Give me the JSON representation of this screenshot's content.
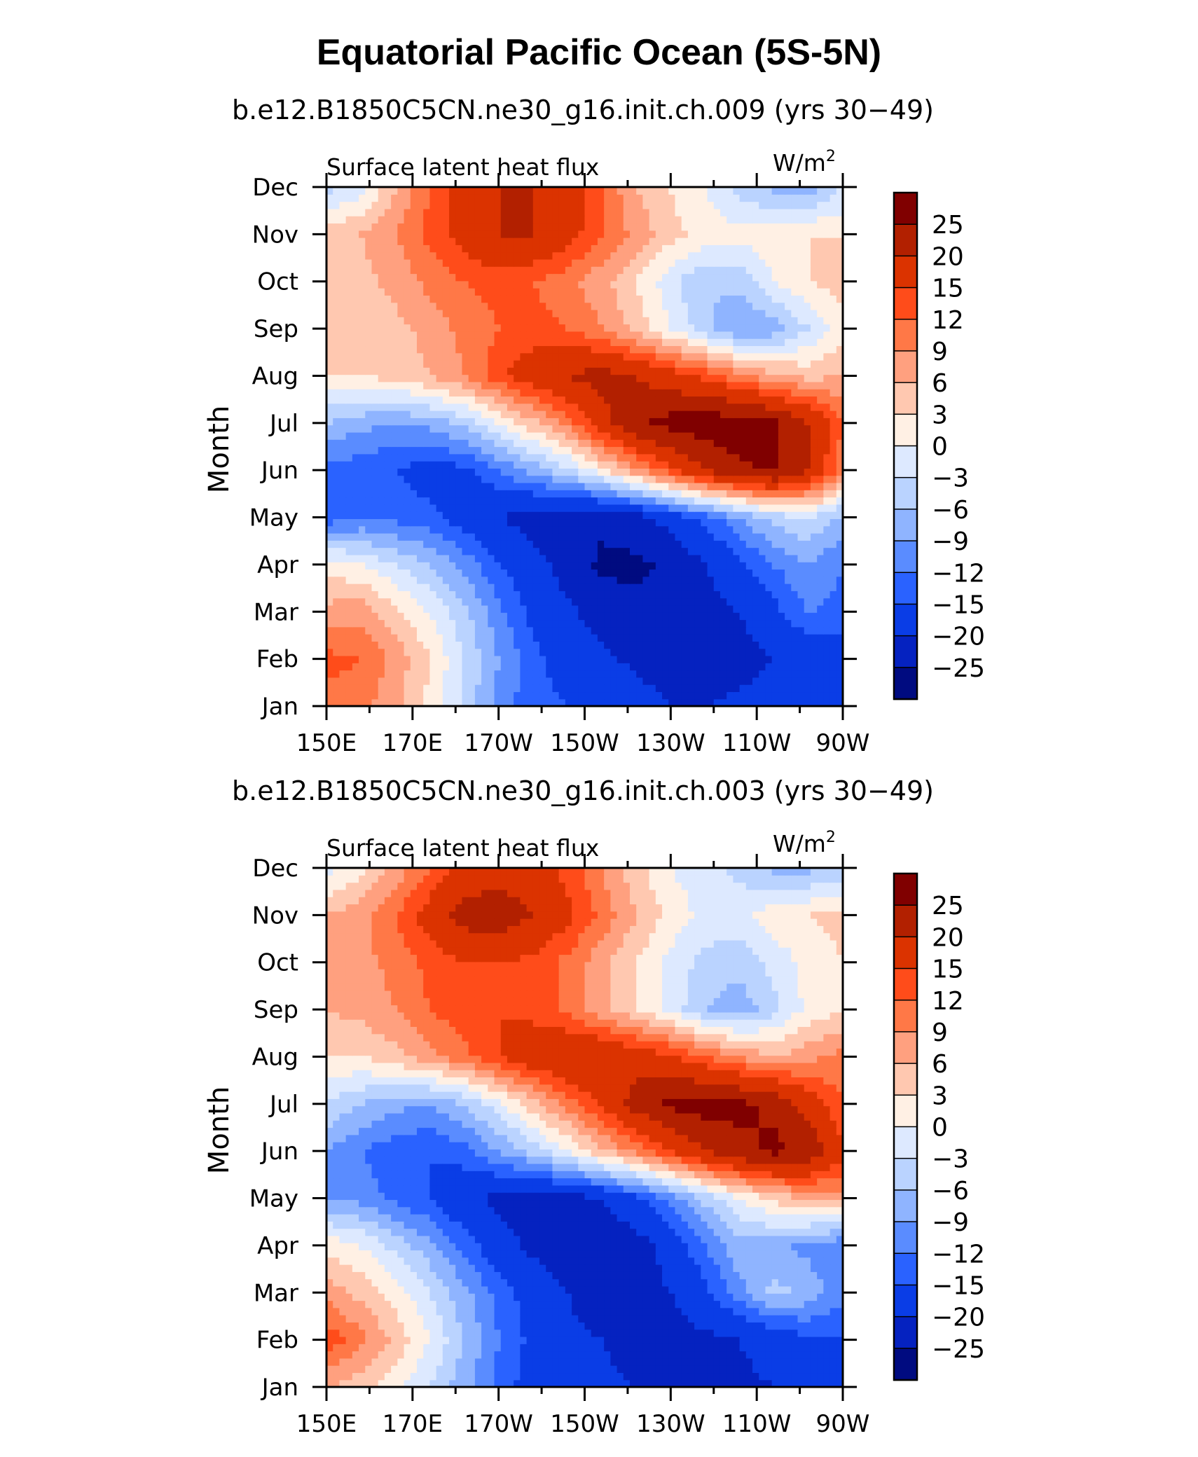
{
  "figure": {
    "title": "Equatorial Pacific Ocean (5S-5N)"
  },
  "chart_data": [
    {
      "type": "heatmap",
      "subtitle": "b.e12.B1850C5CN.ne30_g16.init.ch.009 (yrs 30−49)",
      "variable": "Surface latent heat flux",
      "units_main": "W/m",
      "units_sup": "2",
      "ylabel": "Month",
      "x_ticks": [
        "150E",
        "170E",
        "170W",
        "150W",
        "130W",
        "110W",
        "90W"
      ],
      "y_ticks": [
        "Jan",
        "Feb",
        "Mar",
        "Apr",
        "May",
        "Jun",
        "Jul",
        "Aug",
        "Sep",
        "Oct",
        "Nov",
        "Dec"
      ],
      "x_range": [
        150,
        270
      ],
      "color_levels": [
        "25",
        "20",
        "15",
        "12",
        "9",
        "6",
        "3",
        "0",
        "−3",
        "−6",
        "−9",
        "−12",
        "−15",
        "−20",
        "−25"
      ],
      "colors": [
        "#800000",
        "#b22000",
        "#db3300",
        "#ff4c1a",
        "#ff7847",
        "#ffa07f",
        "#ffc8b0",
        "#fff0e4",
        "#dde9ff",
        "#bad3ff",
        "#8fb4ff",
        "#5a8cff",
        "#2a62ff",
        "#0a3de6",
        "#0522c0",
        "#000b80"
      ],
      "values": [
        [
          11,
          10,
          7,
          2,
          -4,
          -10,
          -14,
          -15,
          -16,
          -18,
          -20,
          -20,
          -19,
          -17,
          -16,
          -16
        ],
        [
          13,
          12,
          8,
          3,
          -3,
          -9,
          -14,
          -17,
          -19,
          -21,
          -22,
          -22,
          -22,
          -20,
          -18,
          -17
        ],
        [
          7,
          8,
          4,
          0,
          -5,
          -11,
          -16,
          -19,
          -22,
          -24,
          -24,
          -22,
          -20,
          -16,
          -12,
          -13
        ],
        [
          2,
          0,
          -3,
          -6,
          -10,
          -15,
          -18,
          -22,
          -26,
          -26,
          -24,
          -20,
          -16,
          -12,
          -9,
          -12
        ],
        [
          -14,
          -12,
          -13,
          -14,
          -17,
          -20,
          -22,
          -24,
          -24,
          -22,
          -18,
          -14,
          -9,
          -5,
          -3,
          -7
        ],
        [
          -13,
          -14,
          -15,
          -17,
          -16,
          -12,
          -8,
          -4,
          2,
          8,
          14,
          20,
          24,
          26,
          20,
          10
        ],
        [
          -6,
          -8,
          -9,
          -8,
          -5,
          0,
          5,
          10,
          18,
          24,
          27,
          28,
          28,
          26,
          20,
          12
        ],
        [
          3,
          3,
          4,
          6,
          9,
          14,
          18,
          20,
          22,
          20,
          17,
          14,
          10,
          7,
          5,
          6
        ],
        [
          3,
          4,
          5,
          7,
          10,
          12,
          13,
          12,
          9,
          5,
          0,
          -5,
          -9,
          -8,
          -3,
          2
        ],
        [
          4,
          5,
          7,
          10,
          12,
          13,
          12,
          10,
          7,
          3,
          -2,
          -6,
          -5,
          0,
          3,
          4
        ],
        [
          5,
          6,
          9,
          13,
          17,
          20,
          20,
          17,
          12,
          8,
          4,
          2,
          1,
          2,
          3,
          3
        ],
        [
          -4,
          -2,
          6,
          12,
          17,
          20,
          20,
          18,
          12,
          6,
          3,
          0,
          -4,
          -7,
          -8,
          -3
        ]
      ]
    },
    {
      "type": "heatmap",
      "subtitle": "b.e12.B1850C5CN.ne30_g16.init.ch.003 (yrs 30−49)",
      "variable": "Surface latent heat flux",
      "units_main": "W/m",
      "units_sup": "2",
      "ylabel": "Month",
      "x_ticks": [
        "150E",
        "170E",
        "170W",
        "150W",
        "130W",
        "110W",
        "90W"
      ],
      "y_ticks": [
        "Jan",
        "Feb",
        "Mar",
        "Apr",
        "May",
        "Jun",
        "Jul",
        "Aug",
        "Sep",
        "Oct",
        "Nov",
        "Dec"
      ],
      "x_range": [
        150,
        270
      ],
      "color_levels": [
        "25",
        "20",
        "15",
        "12",
        "9",
        "6",
        "3",
        "0",
        "−3",
        "−6",
        "−9",
        "−12",
        "−15",
        "−20",
        "−25"
      ],
      "colors": [
        "#800000",
        "#b22000",
        "#db3300",
        "#ff4c1a",
        "#ff7847",
        "#ffa07f",
        "#ffc8b0",
        "#fff0e4",
        "#dde9ff",
        "#bad3ff",
        "#8fb4ff",
        "#5a8cff",
        "#2a62ff",
        "#0a3de6",
        "#0522c0",
        "#000b80"
      ],
      "values": [
        [
          6,
          4,
          1,
          -3,
          -8,
          -13,
          -17,
          -18,
          -19,
          -20,
          -20,
          -20,
          -21,
          -20,
          -19,
          -18
        ],
        [
          14,
          10,
          5,
          0,
          -6,
          -12,
          -16,
          -19,
          -20,
          -22,
          -22,
          -21,
          -20,
          -18,
          -16,
          -15
        ],
        [
          8,
          5,
          2,
          -3,
          -8,
          -13,
          -17,
          -20,
          -23,
          -22,
          -20,
          -16,
          -10,
          -5,
          -7,
          -11
        ],
        [
          2,
          0,
          -4,
          -8,
          -13,
          -18,
          -21,
          -23,
          -24,
          -22,
          -18,
          -12,
          -7,
          -8,
          -10,
          -12
        ],
        [
          -9,
          -10,
          -13,
          -15,
          -19,
          -21,
          -22,
          -22,
          -20,
          -16,
          -11,
          -5,
          0,
          4,
          6,
          8
        ],
        [
          -9,
          -12,
          -14,
          -15,
          -13,
          -9,
          -5,
          0,
          5,
          10,
          15,
          20,
          24,
          26,
          24,
          16
        ],
        [
          -3,
          -6,
          -8,
          -9,
          -6,
          -1,
          5,
          10,
          16,
          22,
          26,
          27,
          26,
          24,
          18,
          12
        ],
        [
          3,
          3,
          5,
          8,
          11,
          15,
          18,
          20,
          20,
          18,
          16,
          12,
          9,
          6,
          8,
          10
        ],
        [
          6,
          7,
          9,
          12,
          14,
          15,
          14,
          11,
          7,
          3,
          -1,
          -6,
          -8,
          -4,
          1,
          3
        ],
        [
          7,
          8,
          10,
          13,
          15,
          15,
          14,
          11,
          7,
          3,
          -1,
          -4,
          -5,
          -2,
          1,
          3
        ],
        [
          6,
          8,
          12,
          17,
          22,
          23,
          20,
          16,
          11,
          6,
          2,
          -1,
          -1,
          2,
          3,
          4
        ],
        [
          -1,
          2,
          7,
          12,
          16,
          18,
          17,
          14,
          9,
          4,
          0,
          -2,
          -4,
          -7,
          -7,
          -5
        ]
      ]
    }
  ]
}
